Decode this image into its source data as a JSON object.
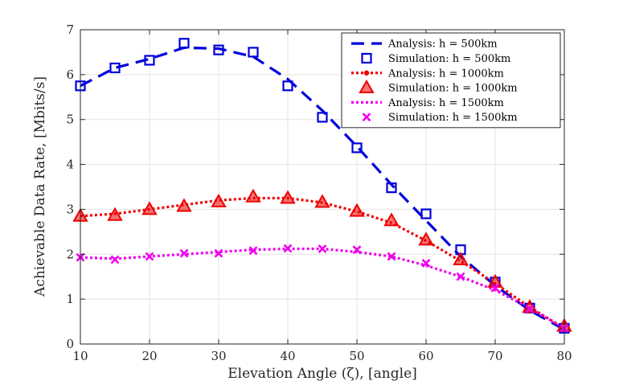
{
  "chart_data": {
    "type": "line",
    "title": "",
    "xlabel": "Elevation Angle (ζ), [angle]",
    "ylabel": "Achievable Data Rate, [Mbits/s]",
    "xlim": [
      10,
      80
    ],
    "ylim": [
      0,
      7
    ],
    "xticks": [
      10,
      20,
      30,
      40,
      50,
      60,
      70,
      80
    ],
    "yticks": [
      0,
      1,
      2,
      3,
      4,
      5,
      6,
      7
    ],
    "grid": true,
    "legend_position": "top-right",
    "x": [
      10,
      15,
      20,
      25,
      30,
      35,
      40,
      45,
      50,
      55,
      60,
      65,
      70,
      75,
      80
    ],
    "series": [
      {
        "name": "Analysis: h = 500km",
        "style": "dashed",
        "color": "#0000dd",
        "x": [
          10,
          15,
          20,
          25,
          30,
          35,
          40,
          45,
          50,
          55,
          60,
          65,
          70,
          75,
          80
        ],
        "values": [
          5.75,
          6.15,
          6.35,
          6.6,
          6.58,
          6.4,
          5.9,
          5.2,
          4.4,
          3.55,
          2.75,
          1.95,
          1.3,
          0.75,
          0.32
        ]
      },
      {
        "name": "Simulation: h = 500km",
        "marker": "square",
        "color": "#0000dd",
        "x": [
          10,
          15,
          20,
          25,
          30,
          35,
          40,
          45,
          50,
          55,
          60,
          65,
          70,
          75,
          80
        ],
        "values": [
          5.75,
          6.15,
          6.32,
          6.7,
          6.55,
          6.5,
          5.75,
          5.05,
          4.37,
          3.48,
          2.9,
          2.1,
          1.38,
          0.8,
          0.35
        ]
      },
      {
        "name": "Analysis: h = 1000km",
        "style": "dotted",
        "color": "#ee0000",
        "x": [
          10,
          15,
          20,
          25,
          30,
          35,
          40,
          45,
          50,
          55,
          60,
          65,
          70,
          75,
          80
        ],
        "values": [
          2.85,
          2.9,
          3.0,
          3.1,
          3.2,
          3.25,
          3.25,
          3.15,
          2.95,
          2.7,
          2.3,
          1.85,
          1.35,
          0.82,
          0.35
        ]
      },
      {
        "name": "Simulation: h = 1000km",
        "marker": "triangle",
        "color": "#ee0000",
        "x": [
          10,
          15,
          20,
          25,
          30,
          35,
          40,
          45,
          50,
          55,
          60,
          65,
          70,
          75,
          80
        ],
        "values": [
          2.85,
          2.87,
          3.0,
          3.07,
          3.17,
          3.28,
          3.25,
          3.16,
          2.96,
          2.75,
          2.32,
          1.88,
          1.38,
          0.82,
          0.4
        ]
      },
      {
        "name": "Analysis: h = 1500km",
        "style": "dotted",
        "color": "#ee00ee",
        "x": [
          10,
          15,
          20,
          25,
          30,
          35,
          40,
          45,
          50,
          55,
          60,
          65,
          70,
          75,
          80
        ],
        "values": [
          1.93,
          1.9,
          1.95,
          2.0,
          2.05,
          2.1,
          2.12,
          2.12,
          2.05,
          1.95,
          1.75,
          1.5,
          1.2,
          0.8,
          0.35
        ]
      },
      {
        "name": "Simulation: h = 1500km",
        "marker": "x",
        "color": "#ee00ee",
        "x": [
          10,
          15,
          20,
          25,
          30,
          35,
          40,
          45,
          50,
          55,
          60,
          65,
          70,
          75,
          80
        ],
        "values": [
          1.93,
          1.88,
          1.95,
          2.02,
          2.02,
          2.08,
          2.13,
          2.12,
          2.1,
          1.95,
          1.8,
          1.5,
          1.25,
          0.78,
          0.35
        ]
      }
    ]
  }
}
